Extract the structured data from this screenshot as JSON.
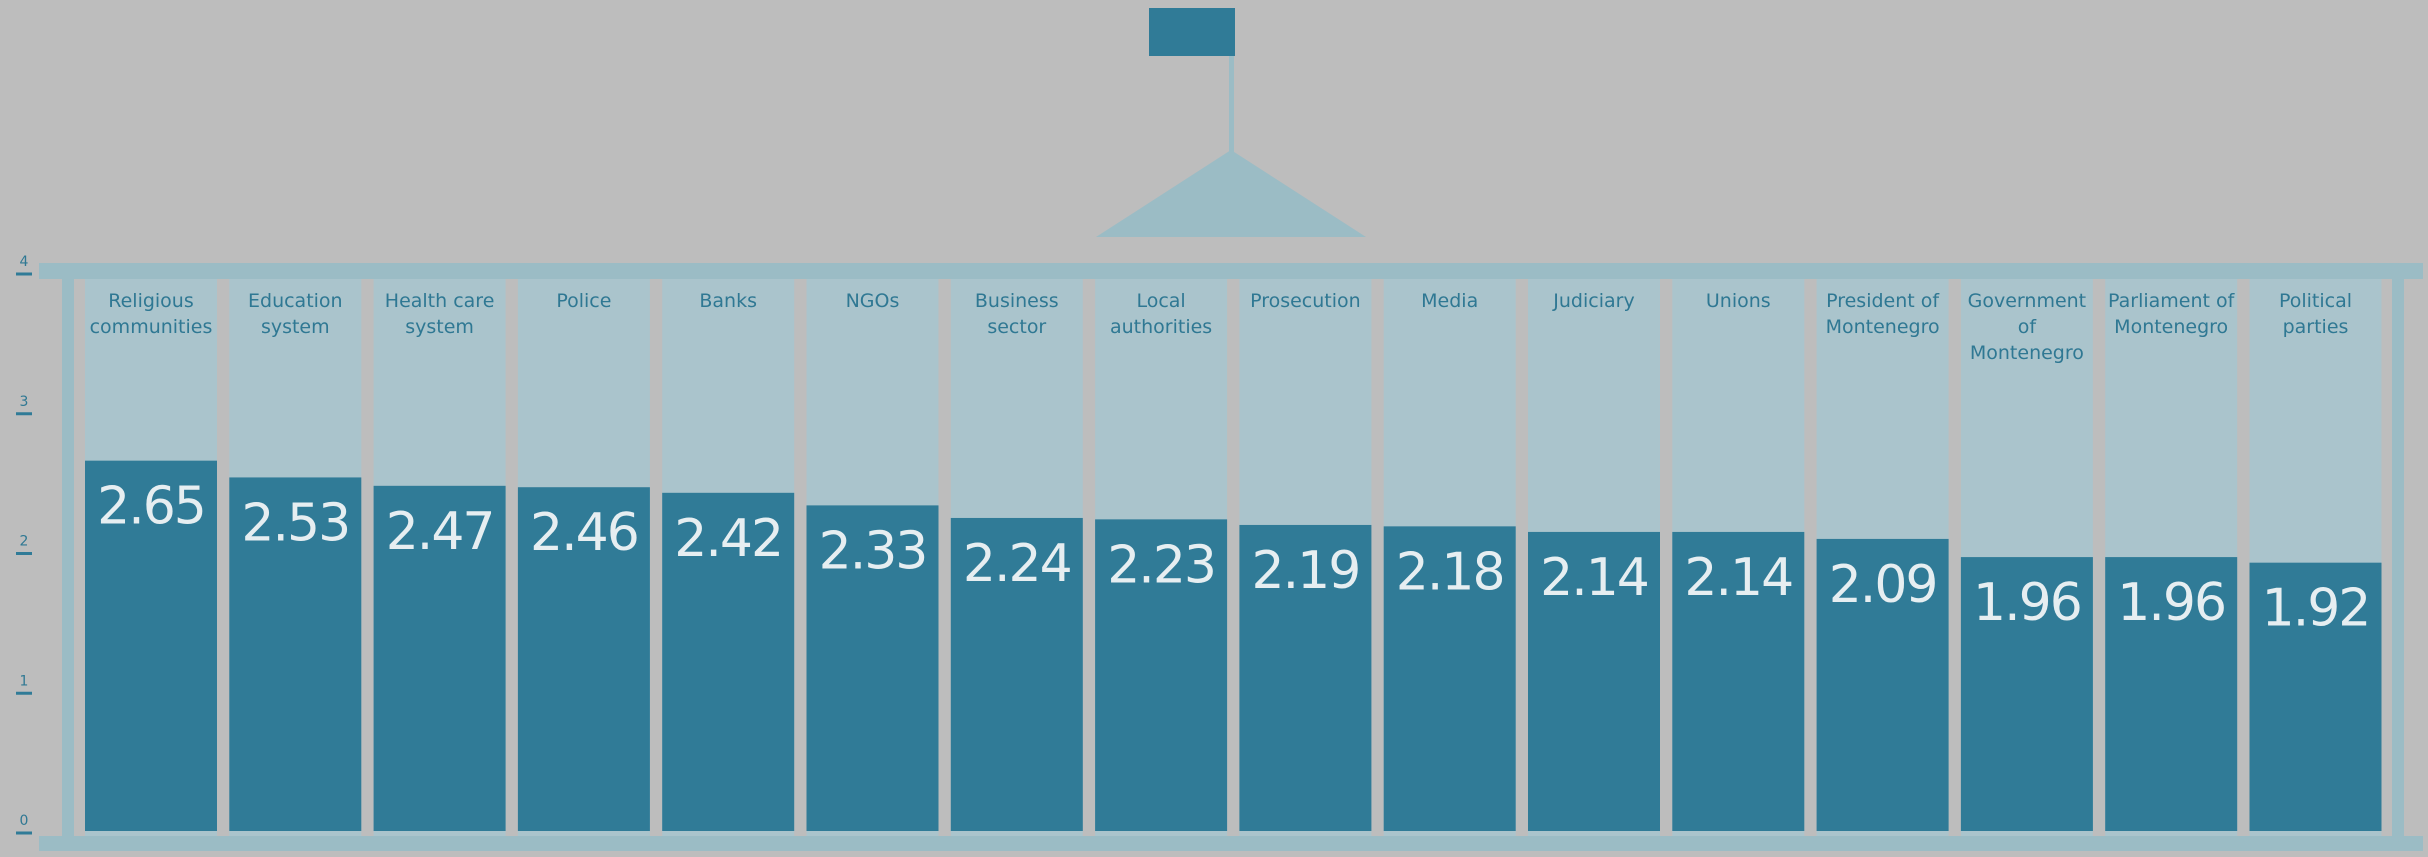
{
  "chart_data": {
    "type": "bar",
    "categories": [
      "Religious communities",
      "Education system",
      "Health care system",
      "Police",
      "Banks",
      "NGOs",
      "Business sector",
      "Local authorities",
      "Prosecution",
      "Media",
      "Judiciary",
      "Unions",
      "President of Montenegro",
      "Government of Montenegro",
      "Parliament of Montenegro",
      "Political parties"
    ],
    "values": [
      2.65,
      2.53,
      2.47,
      2.46,
      2.42,
      2.33,
      2.24,
      2.23,
      2.19,
      2.18,
      2.14,
      2.14,
      2.09,
      1.96,
      1.96,
      1.92
    ],
    "color": "#307b97",
    "ylim": [
      0,
      4
    ],
    "yticks": [
      0,
      1,
      2,
      3,
      4
    ]
  }
}
